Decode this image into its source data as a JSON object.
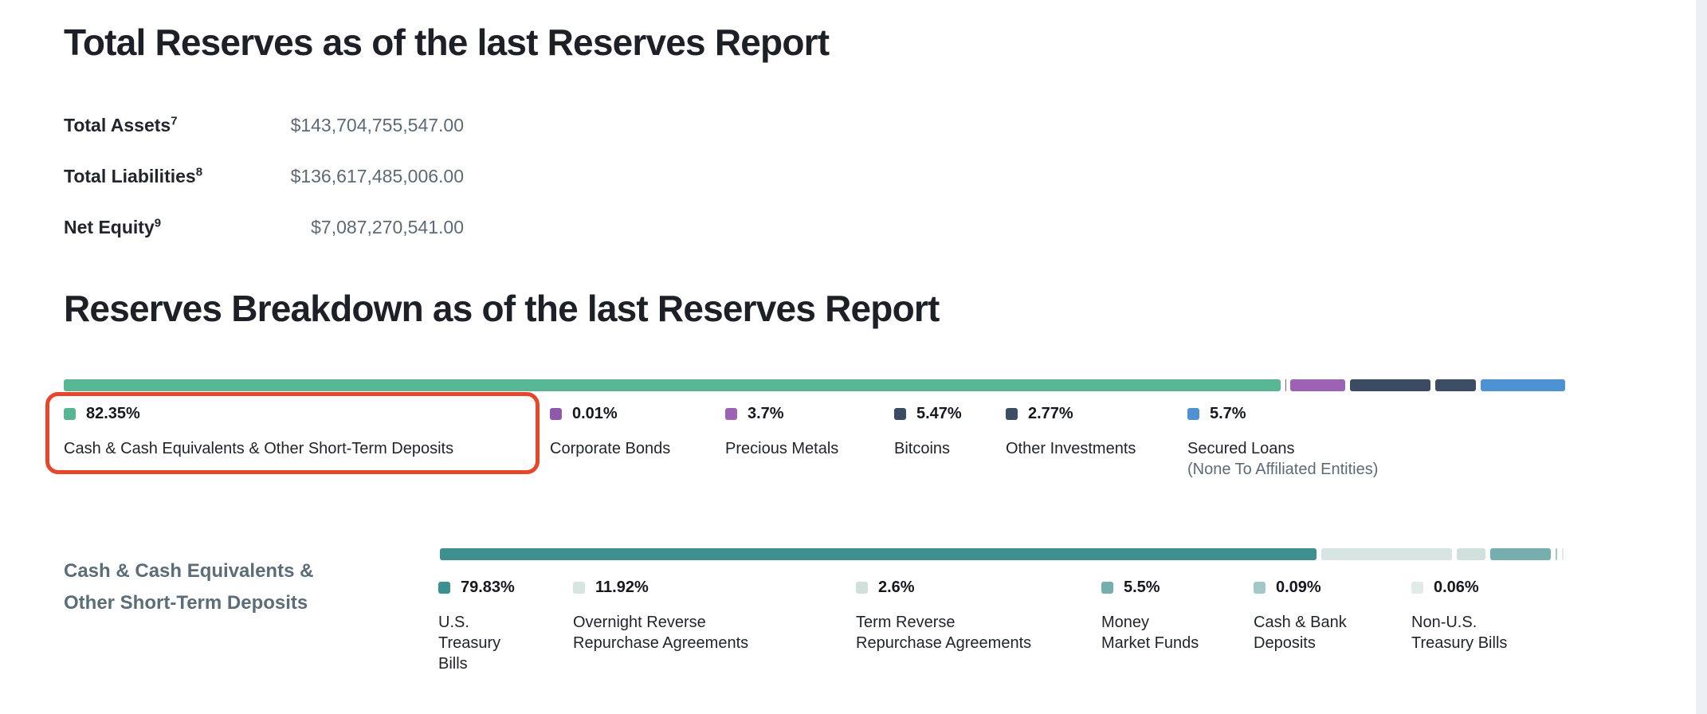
{
  "sections": {
    "total_reserves": {
      "title": "Total Reserves as of the last Reserves Report",
      "stats": [
        {
          "label": "Total Assets",
          "footnote": "7",
          "value": "$143,704,755,547.00"
        },
        {
          "label": "Total Liabilities",
          "footnote": "8",
          "value": "$136,617,485,006.00"
        },
        {
          "label": "Net Equity",
          "footnote": "9",
          "value": "$7,087,270,541.00"
        }
      ]
    },
    "reserves_breakdown": {
      "title": "Reserves Breakdown as of the last Reserves Report"
    },
    "cash_equivalents": {
      "title_lines": [
        "Cash & Cash Equivalents &",
        "Other Short-Term Deposits"
      ]
    }
  },
  "annotation": {
    "highlight_color": "#e7462b",
    "highlighted_item": "Cash & Cash Equivalents & Other Short-Term Deposits"
  },
  "chart_data": [
    {
      "type": "bar",
      "variant": "stacked-horizontal",
      "title": "Reserves Breakdown as of the last Reserves Report",
      "unit": "percent",
      "series": [
        {
          "name": "Cash & Cash Equivalents & Other Short-Term Deposits",
          "value": 82.35,
          "pct_label": "82.35%",
          "label_lines": [
            "Cash & Cash Equivalents & Other Short-Term Deposits"
          ],
          "color": "#57b795",
          "highlighted": true
        },
        {
          "name": "Corporate Bonds",
          "value": 0.01,
          "pct_label": "0.01%",
          "label_lines": [
            "Corporate Bonds"
          ],
          "color": "#8f58ab"
        },
        {
          "name": "Precious Metals",
          "value": 3.7,
          "pct_label": "3.7%",
          "label_lines": [
            "Precious Metals"
          ],
          "color": "#9c63b5"
        },
        {
          "name": "Bitcoins",
          "value": 5.47,
          "pct_label": "5.47%",
          "label_lines": [
            "Bitcoins"
          ],
          "color": "#3b4b61"
        },
        {
          "name": "Other Investments",
          "value": 2.77,
          "pct_label": "2.77%",
          "label_lines": [
            "Other Investments"
          ],
          "color": "#3d4d63"
        },
        {
          "name": "Secured Loans",
          "value": 5.7,
          "pct_label": "5.7%",
          "label_lines": [
            "Secured Loans"
          ],
          "note": "(None To Affiliated Entities)",
          "color": "#4f92d4"
        }
      ]
    },
    {
      "type": "bar",
      "variant": "stacked-horizontal",
      "title": "Cash & Cash Equivalents & Other Short-Term Deposits",
      "unit": "percent",
      "series": [
        {
          "name": "U.S. Treasury Bills",
          "value": 79.83,
          "pct_label": "79.83%",
          "label_lines": [
            "U.S.",
            "Treasury",
            "Bills"
          ],
          "color": "#3e8f8f"
        },
        {
          "name": "Overnight Reverse Repurchase Agreements",
          "value": 11.92,
          "pct_label": "11.92%",
          "label_lines": [
            "Overnight Reverse",
            "Repurchase Agreements"
          ],
          "color": "#d6e5e1"
        },
        {
          "name": "Term Reverse Repurchase Agreements",
          "value": 2.6,
          "pct_label": "2.6%",
          "label_lines": [
            "Term Reverse",
            "Repurchase Agreements"
          ],
          "color": "#d0e1dd"
        },
        {
          "name": "Money Market Funds",
          "value": 5.5,
          "pct_label": "5.5%",
          "label_lines": [
            "Money",
            "Market Funds"
          ],
          "color": "#76adad"
        },
        {
          "name": "Cash & Bank Deposits",
          "value": 0.09,
          "pct_label": "0.09%",
          "label_lines": [
            "Cash & Bank",
            "Deposits"
          ],
          "color": "#a3c8c8"
        },
        {
          "name": "Non-U.S. Treasury Bills",
          "value": 0.06,
          "pct_label": "0.06%",
          "label_lines": [
            "Non-U.S.",
            "Treasury Bills"
          ],
          "color": "#e0eae7"
        }
      ]
    }
  ]
}
